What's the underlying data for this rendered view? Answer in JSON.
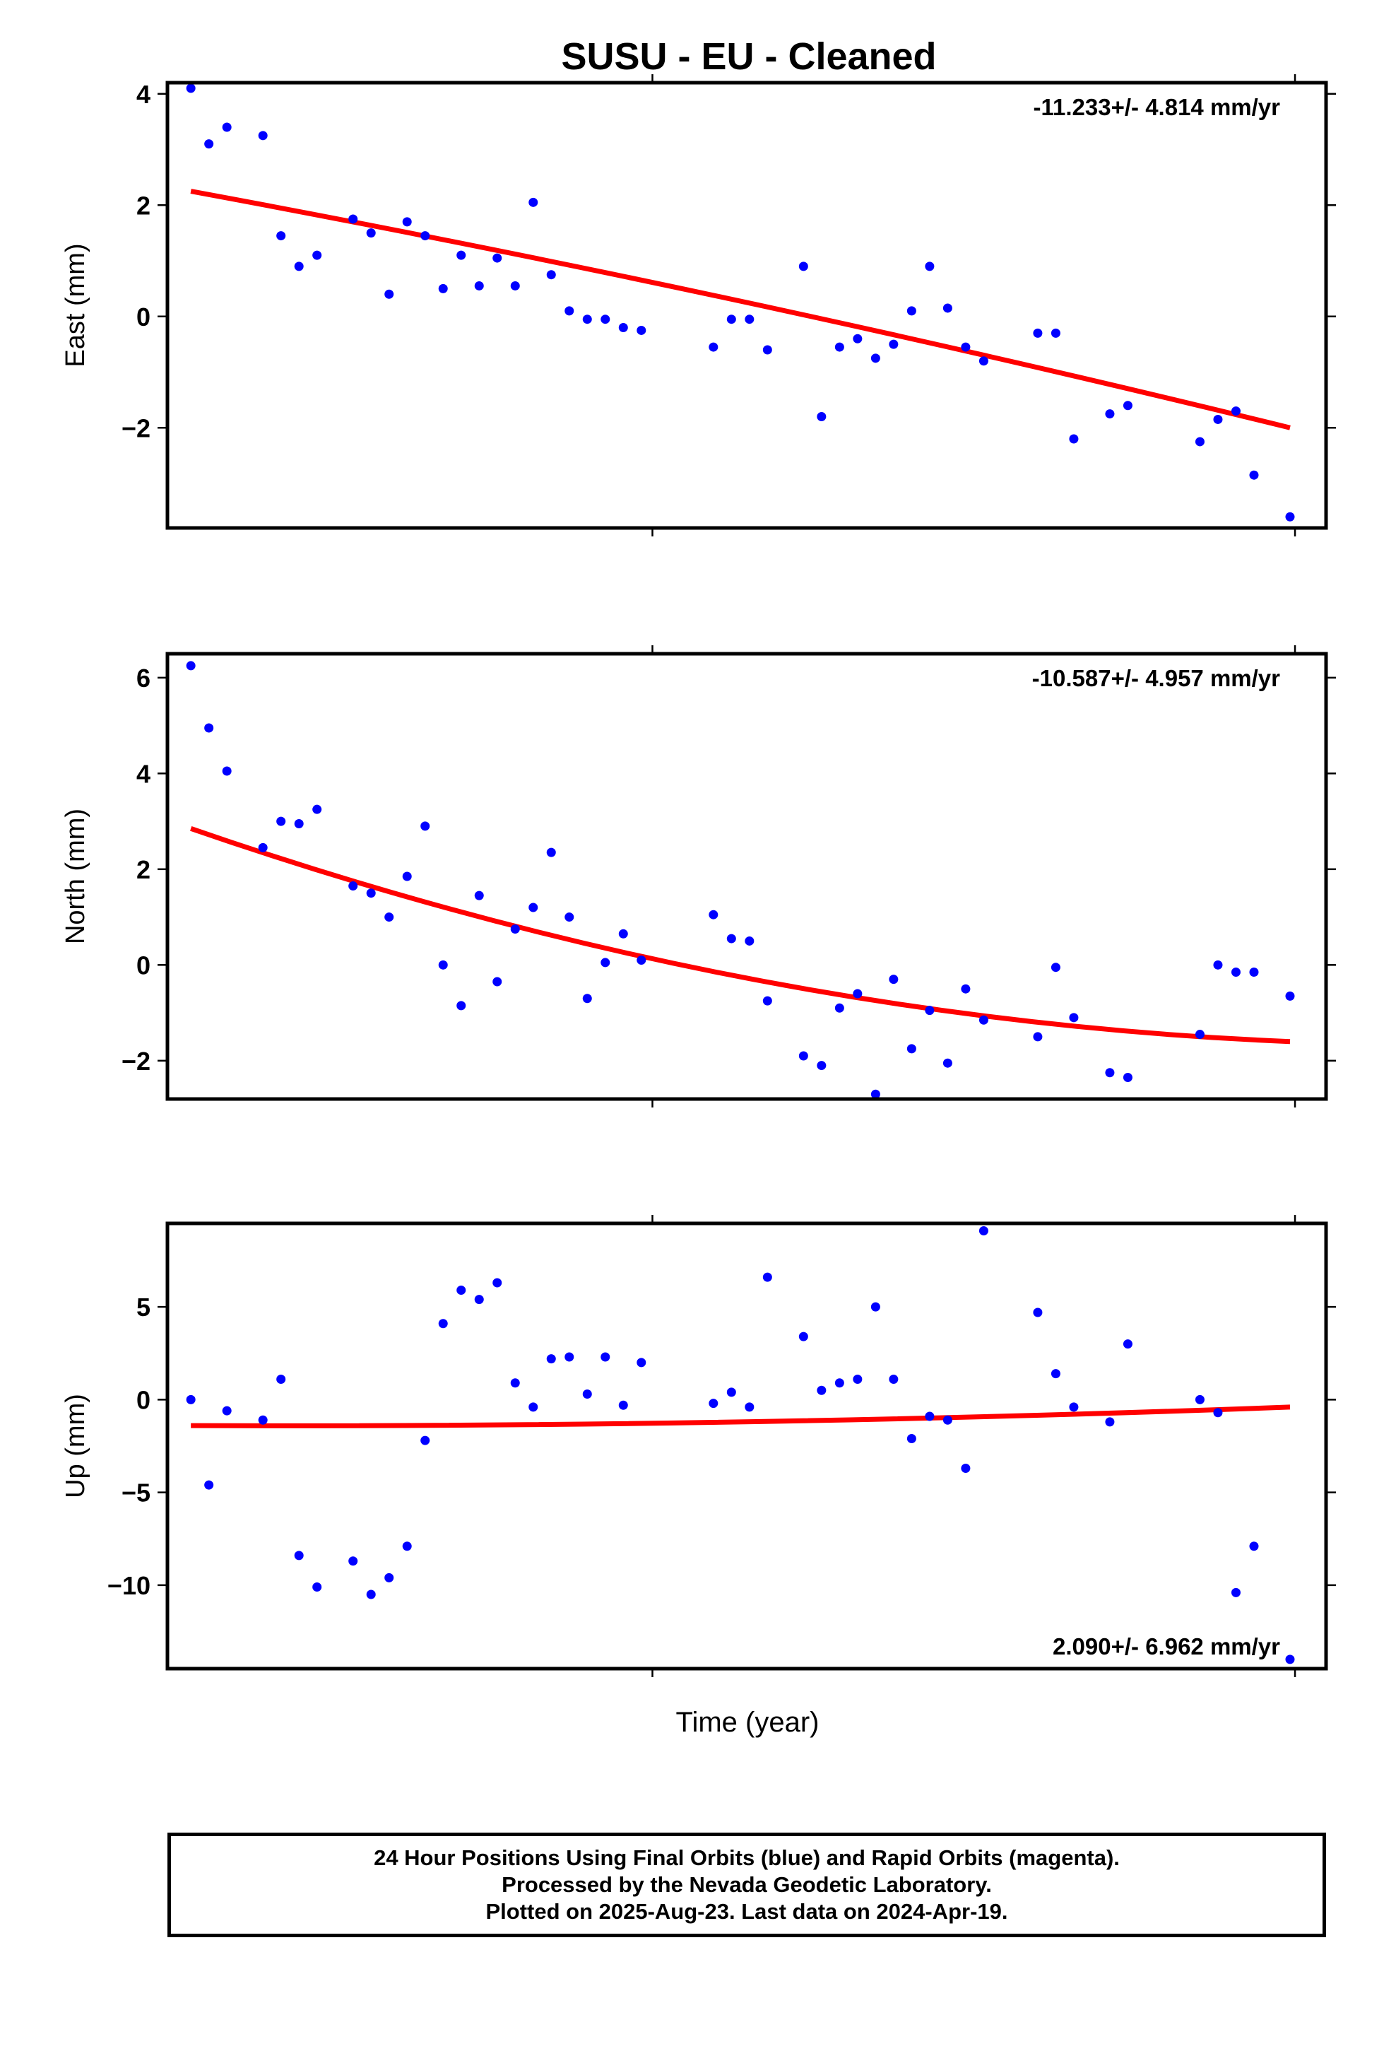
{
  "page": {
    "title": "SUSU  - EU - Cleaned",
    "xlabel": "Time (year)",
    "footer": [
      "24 Hour Positions Using Final Orbits (blue) and Rapid Orbits (magenta).",
      "Processed by the Nevada Geodetic Laboratory.",
      "Plotted on 2025-Aug-23. Last data on 2024-Apr-19."
    ]
  },
  "colors": {
    "final_orbits": "#0000ff",
    "rapid_orbits": "#ff00ff",
    "fit": "#ff0000"
  },
  "chart_data": [
    {
      "type": "scatter",
      "title": "SUSU  - EU - Cleaned",
      "ylabel": "East (mm)",
      "xlabel": "",
      "rate_label": "-11.233+/- 4.814 mm/yr",
      "rate_position": "top-right",
      "x_tick_labels_shown": false,
      "ylim": [
        -3.8,
        4.2
      ],
      "yticks": [
        -2,
        0,
        2,
        4
      ],
      "ytick_labels": [
        "−2",
        "0",
        "2",
        "4"
      ],
      "x": [
        0,
        1,
        2,
        4,
        5,
        6,
        7,
        9,
        10,
        11,
        12,
        13,
        14,
        15,
        16,
        17,
        18,
        19,
        20,
        21,
        22,
        23,
        24,
        25,
        29,
        30,
        31,
        32,
        34,
        35,
        36,
        37,
        38,
        39,
        40,
        41,
        42,
        43,
        44,
        47,
        48,
        49,
        51,
        52,
        56,
        57,
        58,
        59,
        61
      ],
      "y": [
        4.1,
        3.1,
        3.4,
        3.25,
        1.45,
        0.9,
        1.1,
        1.75,
        1.5,
        0.4,
        1.7,
        1.45,
        0.5,
        1.1,
        0.55,
        1.05,
        0.55,
        2.05,
        0.75,
        0.1,
        -0.05,
        -0.05,
        -0.2,
        -0.25,
        -0.55,
        -0.05,
        -0.05,
        -0.6,
        0.9,
        -1.8,
        -0.55,
        -0.4,
        -0.75,
        -0.5,
        0.1,
        0.9,
        0.15,
        -0.55,
        -0.8,
        -0.3,
        -0.3,
        -2.2,
        -1.75,
        -1.6,
        -2.25,
        -1.85,
        -1.7,
        -2.85,
        -3.6
      ],
      "fit": {
        "x": [
          0,
          61
        ],
        "y_start": 2.25,
        "y_end": -2.0,
        "curvature": -0.3
      }
    },
    {
      "type": "scatter",
      "ylabel": "North (mm)",
      "xlabel": "",
      "rate_label": "-10.587+/- 4.957 mm/yr",
      "rate_position": "top-right",
      "x_tick_labels_shown": false,
      "ylim": [
        -2.8,
        6.5
      ],
      "yticks": [
        -2,
        0,
        2,
        4,
        6
      ],
      "ytick_labels": [
        "−2",
        "0",
        "2",
        "4",
        "6"
      ],
      "x": [
        0,
        1,
        2,
        4,
        5,
        6,
        7,
        9,
        10,
        11,
        12,
        13,
        14,
        15,
        16,
        17,
        18,
        19,
        20,
        21,
        22,
        23,
        24,
        25,
        29,
        30,
        31,
        32,
        34,
        35,
        36,
        37,
        38,
        39,
        40,
        41,
        42,
        43,
        44,
        47,
        48,
        49,
        51,
        52,
        56,
        57,
        58,
        59,
        61
      ],
      "y": [
        6.25,
        4.95,
        4.05,
        2.45,
        3.0,
        2.95,
        3.25,
        1.65,
        1.5,
        1.0,
        1.85,
        2.9,
        0.0,
        -0.85,
        1.45,
        -0.35,
        0.75,
        1.2,
        2.35,
        1.0,
        -0.7,
        0.05,
        0.65,
        0.1,
        1.05,
        0.55,
        0.5,
        -0.75,
        -1.9,
        -2.1,
        -0.9,
        -0.6,
        -2.7,
        -0.3,
        -1.75,
        -0.95,
        -2.05,
        -0.5,
        -1.15,
        -1.5,
        -0.05,
        -1.1,
        -2.25,
        -2.35,
        -1.45,
        0.0,
        -0.15,
        -0.15,
        -0.65
      ],
      "fit": {
        "x": [
          0,
          61
        ],
        "y_start": 2.85,
        "y_end": -1.6,
        "curvature": 1.75
      }
    },
    {
      "type": "scatter",
      "ylabel": "Up (mm)",
      "xlabel": "Time (year)",
      "rate_label": "2.090+/- 6.962 mm/yr",
      "rate_position": "bottom-right",
      "x_tick_labels_shown": false,
      "ylim": [
        -14.5,
        9.5
      ],
      "yticks": [
        -10,
        -5,
        0,
        5
      ],
      "ytick_labels": [
        "−10",
        "−5",
        "0",
        "5"
      ],
      "x": [
        0,
        1,
        2,
        4,
        5,
        6,
        7,
        9,
        10,
        11,
        12,
        13,
        14,
        15,
        16,
        17,
        18,
        19,
        20,
        21,
        22,
        23,
        24,
        25,
        29,
        30,
        31,
        32,
        34,
        35,
        36,
        37,
        38,
        39,
        40,
        41,
        42,
        43,
        44,
        47,
        48,
        49,
        51,
        52,
        56,
        57,
        58,
        59,
        61
      ],
      "y": [
        0.0,
        -4.6,
        -0.6,
        -1.1,
        1.1,
        -8.4,
        -10.1,
        -8.7,
        -10.5,
        -9.6,
        -7.9,
        -2.2,
        4.1,
        5.9,
        5.4,
        6.3,
        0.9,
        -0.4,
        2.2,
        2.3,
        0.3,
        2.3,
        -0.3,
        2.0,
        -0.2,
        0.4,
        -0.4,
        6.6,
        3.4,
        0.5,
        0.9,
        1.1,
        5.0,
        1.1,
        -2.1,
        -0.9,
        -1.1,
        -3.7,
        9.1,
        4.7,
        1.4,
        -0.4,
        -1.2,
        3.0,
        0.0,
        -0.7,
        -10.4,
        -7.9,
        -14.0
      ],
      "fit": {
        "x": [
          0,
          61
        ],
        "y_start": -1.4,
        "y_end": -0.4,
        "curvature": 0.6
      }
    }
  ]
}
